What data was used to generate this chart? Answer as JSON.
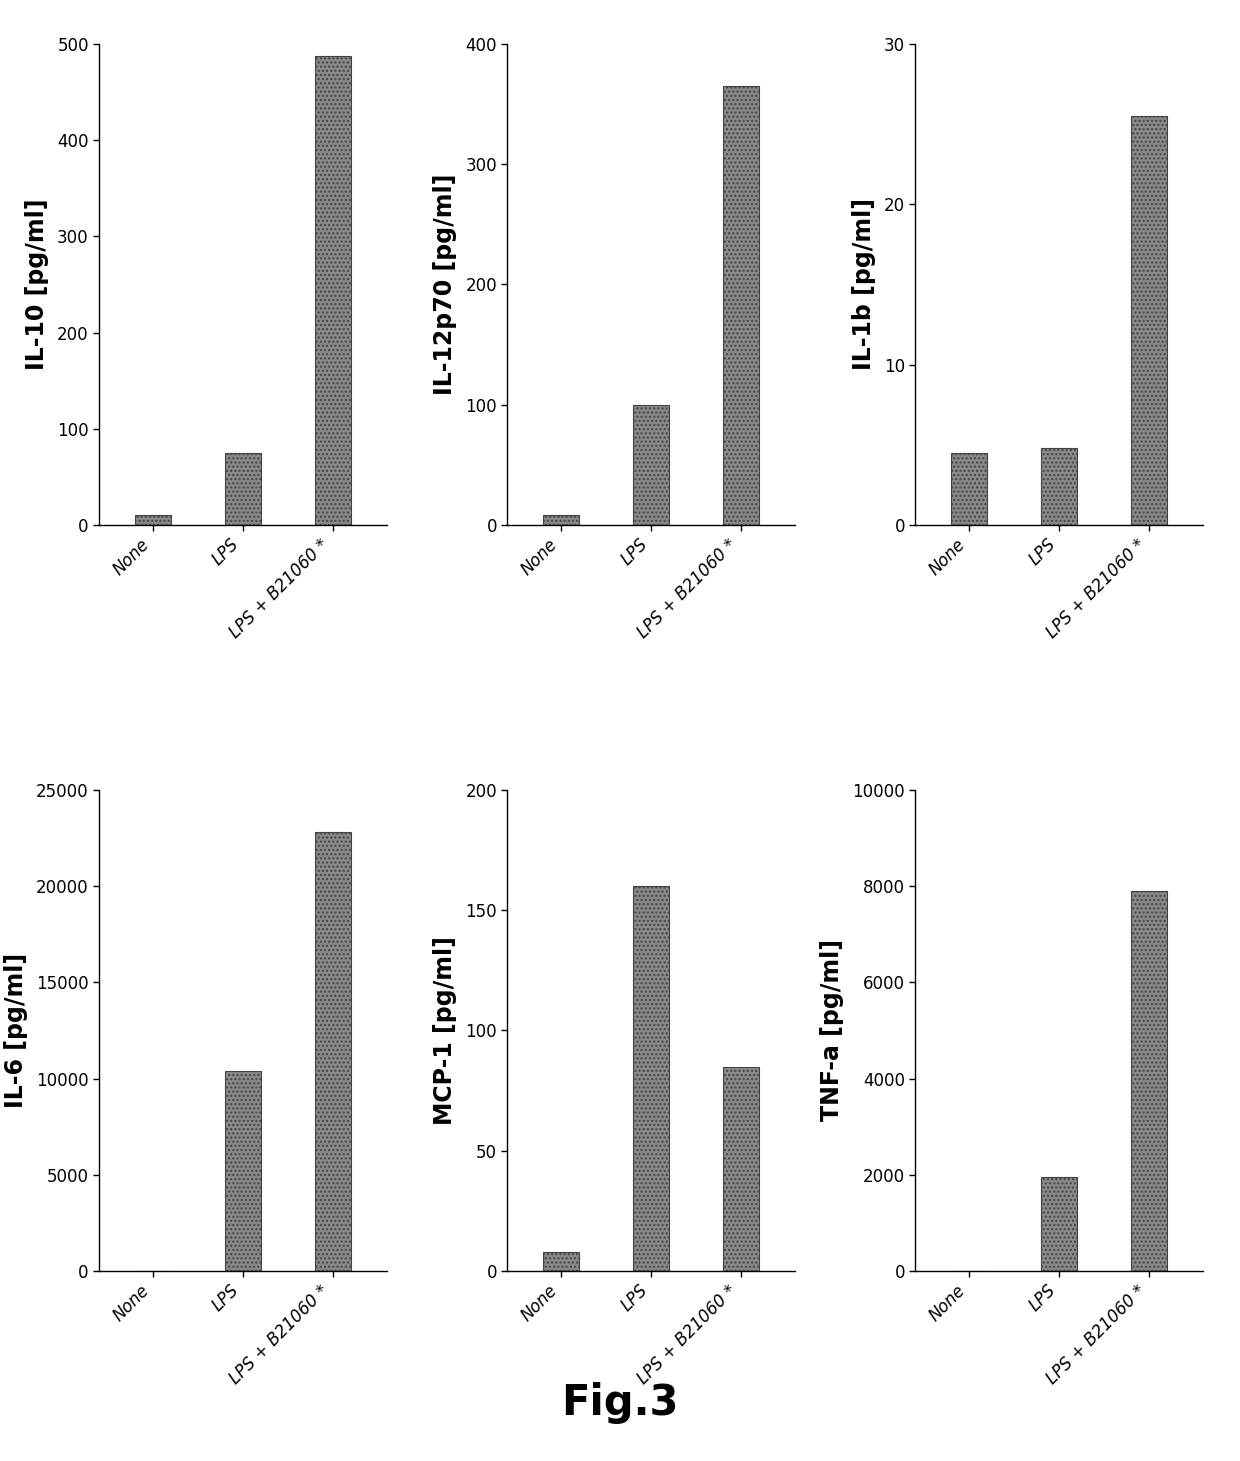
{
  "subplots": [
    {
      "ylabel": "IL-10 [pg/ml]",
      "categories": [
        "None",
        "LPS",
        "LPS + B21060 *"
      ],
      "values": [
        10,
        75,
        487
      ],
      "ylim": [
        0,
        500
      ],
      "yticks": [
        0,
        100,
        200,
        300,
        400,
        500
      ]
    },
    {
      "ylabel": "IL-12p70 [pg/ml]",
      "categories": [
        "None",
        "LPS",
        "LPS + B21060 *"
      ],
      "values": [
        8,
        100,
        365
      ],
      "ylim": [
        0,
        400
      ],
      "yticks": [
        0,
        100,
        200,
        300,
        400
      ]
    },
    {
      "ylabel": "IL-1b [pg/ml]",
      "categories": [
        "None",
        "LPS",
        "LPS + B21060 *"
      ],
      "values": [
        4.5,
        4.8,
        25.5
      ],
      "ylim": [
        0,
        30
      ],
      "yticks": [
        0,
        10,
        20,
        30
      ]
    },
    {
      "ylabel": "IL-6 [pg/ml]",
      "categories": [
        "None",
        "LPS",
        "LPS + B21060 *"
      ],
      "values": [
        0,
        10400,
        22800
      ],
      "ylim": [
        0,
        25000
      ],
      "yticks": [
        0,
        5000,
        10000,
        15000,
        20000,
        25000
      ]
    },
    {
      "ylabel": "MCP-1 [pg/ml]",
      "categories": [
        "None",
        "LPS",
        "LPS + B21060 *"
      ],
      "values": [
        8,
        160,
        85
      ],
      "ylim": [
        0,
        200
      ],
      "yticks": [
        0,
        50,
        100,
        150,
        200
      ]
    },
    {
      "ylabel": "TNF-a [pg/ml]",
      "categories": [
        "None",
        "LPS",
        "LPS + B21060 *"
      ],
      "values": [
        0,
        1950,
        7900
      ],
      "ylim": [
        0,
        10000
      ],
      "yticks": [
        0,
        2000,
        4000,
        6000,
        8000,
        10000
      ]
    }
  ],
  "bar_color": "#888888",
  "bar_hatch": "....",
  "bar_width": 0.4,
  "fig_caption": "Fig.3",
  "background_color": "#ffffff",
  "tick_label_fontsize": 12,
  "ylabel_fontsize": 17,
  "caption_fontsize": 30,
  "ytick_fontsize": 12
}
